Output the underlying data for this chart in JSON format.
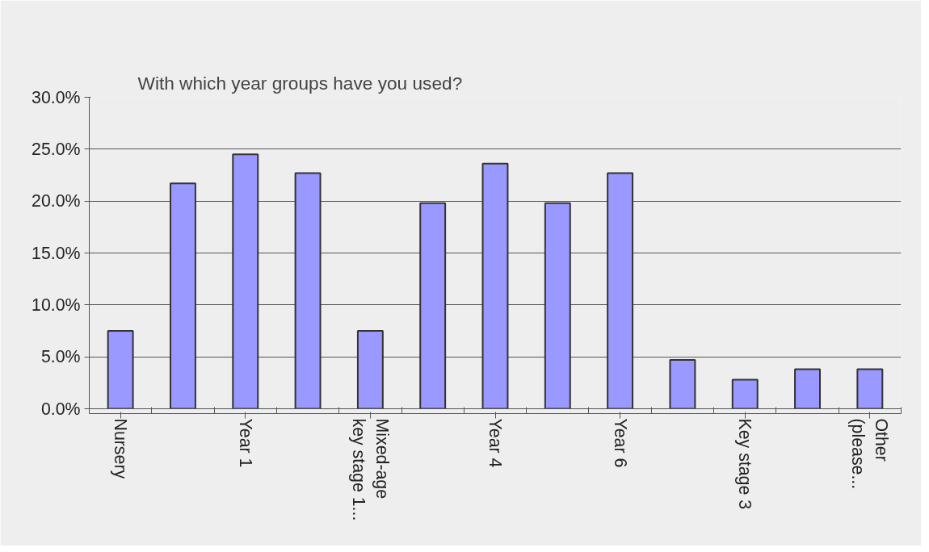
{
  "chart_data": {
    "type": "bar",
    "title": "With which year groups have you used?",
    "categories": [
      "Nursery",
      null,
      "Year 1",
      null,
      "Mixed-age\nkey stage 1...",
      null,
      "Year 4",
      null,
      "Year 6",
      null,
      "Key stage 3",
      null,
      "Other\n(please..."
    ],
    "values": [
      7.5,
      21.7,
      24.5,
      22.7,
      7.5,
      19.8,
      23.6,
      19.8,
      22.7,
      4.7,
      2.8,
      3.8,
      3.8
    ],
    "color": "#9999ff",
    "ylim": [
      0,
      30
    ],
    "yticks": [
      {
        "value": 0,
        "label": "0.0%"
      },
      {
        "value": 5,
        "label": "5.0%"
      },
      {
        "value": 10,
        "label": "10.0%"
      },
      {
        "value": 15,
        "label": "15.0%"
      },
      {
        "value": 20,
        "label": "20.0%"
      },
      {
        "value": 25,
        "label": "25.0%"
      },
      {
        "value": 30,
        "label": "30.0%"
      }
    ],
    "grid": "y"
  }
}
